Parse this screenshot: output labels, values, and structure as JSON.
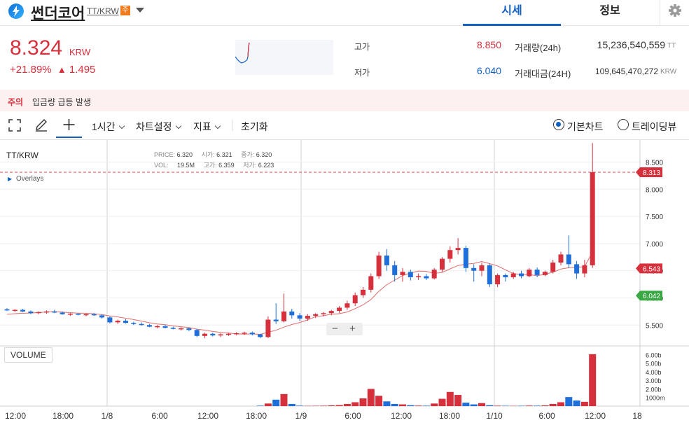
{
  "header": {
    "coin_name": "썬더코어",
    "pair": "TT/KRW",
    "warning_badge": "주",
    "tabs": [
      {
        "label": "시세",
        "active": true
      },
      {
        "label": "정보",
        "active": false
      }
    ]
  },
  "ticker": {
    "price": "8.324",
    "currency": "KRW",
    "change_pct": "+21.89%",
    "change_arrow": "▲",
    "change_abs": "1.495",
    "high_label": "고가",
    "high": "8.850",
    "low_label": "저가",
    "low": "6.040",
    "volume_label": "거래량(24h)",
    "volume": "15,236,540,559",
    "volume_unit": "TT",
    "value_label": "거래대금(24H)",
    "value": "109,645,470,272",
    "value_unit": "KRW"
  },
  "alert": {
    "tag": "주의",
    "message": "입금량 급등 발생"
  },
  "toolbar": {
    "interval": "1시간",
    "chart_settings": "차트설정",
    "indicators": "지표",
    "reset": "초기화",
    "radio_basic": "기본차트",
    "radio_tradingview": "트레이딩뷰"
  },
  "chart_info": {
    "symbol": "TT/KRW",
    "price_label": "PRICE:",
    "price": "6.320",
    "open_label": "시가:",
    "open": "6.321",
    "close_label": "종가:",
    "close": "6.320",
    "vol_label": "VOL:",
    "vol": "19.5M",
    "high_label": "고가:",
    "high": "6.359",
    "low_label": "저가:",
    "low": "6.223",
    "overlays": "Overlays",
    "volume_pane": "VOLUME"
  },
  "chart_data": {
    "type": "candlestick",
    "y_ticks": [
      "8.500",
      "8.000",
      "7.500",
      "7.000",
      "6.500",
      "6.000",
      "5.500"
    ],
    "volume_ticks": [
      "6.00b",
      "5.00b",
      "4.00b",
      "3.00b",
      "2.00b",
      "1000m"
    ],
    "x_ticks": [
      "12:00",
      "18:00",
      "1/8",
      "6:00",
      "12:00",
      "18:00",
      "1/9",
      "6:00",
      "12:00",
      "18:00",
      "1/10",
      "6:00",
      "12:00",
      "18"
    ],
    "price_tags": [
      {
        "value": "8.313",
        "color": "#d6303c"
      },
      {
        "value": "6.543",
        "color": "#d6303c"
      },
      {
        "value": "6.042",
        "color": "#3aa845"
      }
    ],
    "candles": [
      [
        5.79,
        5.81,
        5.76,
        5.77
      ],
      [
        5.77,
        5.79,
        5.74,
        5.78
      ],
      [
        5.78,
        5.8,
        5.74,
        5.75
      ],
      [
        5.75,
        5.77,
        5.7,
        5.72
      ],
      [
        5.72,
        5.75,
        5.7,
        5.74
      ],
      [
        5.74,
        5.77,
        5.71,
        5.75
      ],
      [
        5.75,
        5.78,
        5.72,
        5.73
      ],
      [
        5.73,
        5.75,
        5.69,
        5.7
      ],
      [
        5.7,
        5.72,
        5.67,
        5.71
      ],
      [
        5.71,
        5.72,
        5.68,
        5.69
      ],
      [
        5.69,
        5.71,
        5.66,
        5.7
      ],
      [
        5.7,
        5.72,
        5.67,
        5.68
      ],
      [
        5.68,
        5.7,
        5.62,
        5.64
      ],
      [
        5.64,
        5.66,
        5.53,
        5.55
      ],
      [
        5.55,
        5.6,
        5.52,
        5.58
      ],
      [
        5.58,
        5.61,
        5.53,
        5.54
      ],
      [
        5.54,
        5.56,
        5.5,
        5.52
      ],
      [
        5.52,
        5.55,
        5.49,
        5.5
      ],
      [
        5.5,
        5.52,
        5.46,
        5.47
      ],
      [
        5.47,
        5.5,
        5.44,
        5.48
      ],
      [
        5.48,
        5.5,
        5.44,
        5.45
      ],
      [
        5.45,
        5.47,
        5.42,
        5.43
      ],
      [
        5.43,
        5.46,
        5.4,
        5.44
      ],
      [
        5.44,
        5.45,
        5.39,
        5.41
      ],
      [
        5.41,
        5.43,
        5.28,
        5.3
      ],
      [
        5.3,
        5.36,
        5.26,
        5.34
      ],
      [
        5.34,
        5.36,
        5.29,
        5.31
      ],
      [
        5.31,
        5.35,
        5.28,
        5.33
      ],
      [
        5.33,
        5.36,
        5.3,
        5.34
      ],
      [
        5.34,
        5.37,
        5.31,
        5.35
      ],
      [
        5.35,
        5.38,
        5.32,
        5.36
      ],
      [
        5.36,
        5.38,
        5.31,
        5.33
      ],
      [
        5.33,
        5.34,
        5.26,
        5.28
      ],
      [
        5.28,
        5.66,
        5.26,
        5.6
      ],
      [
        5.6,
        5.9,
        5.52,
        5.57
      ],
      [
        5.57,
        6.08,
        5.55,
        5.75
      ],
      [
        5.75,
        5.8,
        5.62,
        5.68
      ],
      [
        5.68,
        5.72,
        5.58,
        5.62
      ],
      [
        5.62,
        5.7,
        5.58,
        5.67
      ],
      [
        5.67,
        5.72,
        5.63,
        5.7
      ],
      [
        5.7,
        5.74,
        5.66,
        5.72
      ],
      [
        5.72,
        5.78,
        5.68,
        5.76
      ],
      [
        5.76,
        5.85,
        5.72,
        5.82
      ],
      [
        5.82,
        5.95,
        5.78,
        5.9
      ],
      [
        5.9,
        6.1,
        5.85,
        6.05
      ],
      [
        6.05,
        6.2,
        6.0,
        6.15
      ],
      [
        6.15,
        6.45,
        6.1,
        6.4
      ],
      [
        6.4,
        6.85,
        6.35,
        6.78
      ],
      [
        6.78,
        6.9,
        6.5,
        6.6
      ],
      [
        6.6,
        6.68,
        6.3,
        6.42
      ],
      [
        6.42,
        6.55,
        6.3,
        6.48
      ],
      [
        6.48,
        6.52,
        6.32,
        6.38
      ],
      [
        6.38,
        6.45,
        6.33,
        6.4
      ],
      [
        6.4,
        6.44,
        6.33,
        6.36
      ],
      [
        6.36,
        6.55,
        6.34,
        6.52
      ],
      [
        6.52,
        6.75,
        6.48,
        6.72
      ],
      [
        6.72,
        6.95,
        6.65,
        6.88
      ],
      [
        6.88,
        7.1,
        6.8,
        6.92
      ],
      [
        6.92,
        6.96,
        6.48,
        6.55
      ],
      [
        6.55,
        6.62,
        6.3,
        6.5
      ],
      [
        6.5,
        6.65,
        6.4,
        6.6
      ],
      [
        6.6,
        6.63,
        6.2,
        6.25
      ],
      [
        6.25,
        6.45,
        6.2,
        6.42
      ],
      [
        6.42,
        6.45,
        6.3,
        6.38
      ],
      [
        6.38,
        6.48,
        6.35,
        6.45
      ],
      [
        6.45,
        6.5,
        6.36,
        6.4
      ],
      [
        6.4,
        6.55,
        6.38,
        6.52
      ],
      [
        6.52,
        6.56,
        6.38,
        6.42
      ],
      [
        6.42,
        6.5,
        6.4,
        6.48
      ],
      [
        6.48,
        6.7,
        6.45,
        6.65
      ],
      [
        6.65,
        6.85,
        6.6,
        6.8
      ],
      [
        6.8,
        7.15,
        6.55,
        6.62
      ],
      [
        6.62,
        6.68,
        6.35,
        6.45
      ],
      [
        6.45,
        6.7,
        6.38,
        6.6
      ],
      [
        6.6,
        8.85,
        6.55,
        8.313
      ]
    ],
    "volumes": [
      0,
      0,
      0,
      0,
      0,
      0,
      0,
      0,
      0,
      0,
      0,
      0,
      0,
      0,
      0,
      0,
      0,
      0,
      0,
      0,
      0,
      0,
      0,
      0,
      0,
      0,
      0,
      0,
      0,
      0,
      0,
      0,
      0.05,
      0.3,
      0.75,
      1.4,
      0.25,
      0.05,
      0.03,
      0.04,
      0.05,
      0.08,
      0.12,
      0.25,
      0.45,
      0.9,
      2.0,
      1.2,
      0.55,
      0.25,
      0.2,
      0.1,
      0.06,
      0.05,
      0.3,
      0.85,
      1.65,
      1.3,
      0.4,
      0.2,
      0.35,
      0.1,
      0.05,
      0.04,
      0.03,
      0.04,
      0.06,
      0.05,
      0.08,
      0.25,
      0.45,
      1.05,
      0.65,
      0.5,
      6.05
    ],
    "ma_short": "red",
    "ma_long": "green"
  }
}
